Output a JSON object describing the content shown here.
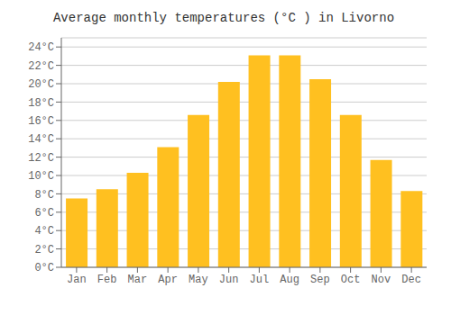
{
  "chart_data": {
    "type": "bar",
    "title": "Average monthly temperatures (°C ) in Livorno",
    "categories": [
      "Jan",
      "Feb",
      "Mar",
      "Apr",
      "May",
      "Jun",
      "Jul",
      "Aug",
      "Sep",
      "Oct",
      "Nov",
      "Dec"
    ],
    "values": [
      7.5,
      8.5,
      10.3,
      13.1,
      16.6,
      20.2,
      23.1,
      23.1,
      20.5,
      16.6,
      11.7,
      8.3
    ],
    "color": "#FFC020",
    "ylim": [
      0,
      25
    ],
    "yticks": [
      {
        "value": 0,
        "label": "0°C"
      },
      {
        "value": 2,
        "label": "2°C"
      },
      {
        "value": 4,
        "label": "4°C"
      },
      {
        "value": 6,
        "label": "6°C"
      },
      {
        "value": 8,
        "label": "8°C"
      },
      {
        "value": 10,
        "label": "10°C"
      },
      {
        "value": 12,
        "label": "12°C"
      },
      {
        "value": 14,
        "label": "14°C"
      },
      {
        "value": 16,
        "label": "16°C"
      },
      {
        "value": 18,
        "label": "18°C"
      },
      {
        "value": 20,
        "label": "20°C"
      },
      {
        "value": 22,
        "label": "22°C"
      },
      {
        "value": 24,
        "label": "24°C"
      }
    ],
    "grid": true
  }
}
